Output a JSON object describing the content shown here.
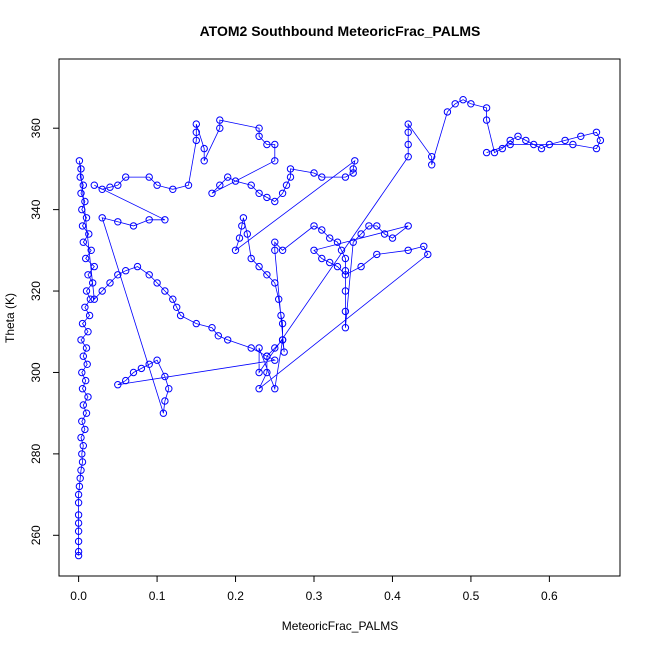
{
  "chart_data": {
    "type": "scatter",
    "title": "ATOM2 Southbound MeteoricFrac_PALMS",
    "xlabel": "MeteoricFrac_PALMS",
    "ylabel": "Theta (K)",
    "xlim": [
      -0.025,
      0.69
    ],
    "ylim": [
      250,
      377
    ],
    "x_ticks": [
      0.0,
      0.1,
      0.2,
      0.3,
      0.4,
      0.5,
      0.6
    ],
    "x_tick_labels": [
      "0.0",
      "0.1",
      "0.2",
      "0.3",
      "0.4",
      "0.5",
      "0.6"
    ],
    "y_ticks": [
      260,
      280,
      300,
      320,
      340,
      360
    ],
    "y_tick_labels": [
      "260",
      "280",
      "300",
      "320",
      "340",
      "360"
    ],
    "grid": false,
    "legend": "none",
    "marker": "open-circle",
    "connect_points": true,
    "color": "#0000ff",
    "points": [
      [
        0.0,
        255.0
      ],
      [
        0.0,
        256.0
      ],
      [
        0.0,
        258.5
      ],
      [
        0.0,
        261.0
      ],
      [
        0.0,
        263.0
      ],
      [
        0.0,
        265.0
      ],
      [
        0.0,
        268.0
      ],
      [
        0.0,
        270.0
      ],
      [
        0.001,
        272.0
      ],
      [
        0.002,
        274.0
      ],
      [
        0.003,
        276.0
      ],
      [
        0.005,
        278.0
      ],
      [
        0.004,
        280.0
      ],
      [
        0.006,
        282.0
      ],
      [
        0.003,
        284.0
      ],
      [
        0.008,
        286.0
      ],
      [
        0.004,
        288.0
      ],
      [
        0.01,
        290.0
      ],
      [
        0.006,
        292.0
      ],
      [
        0.012,
        294.0
      ],
      [
        0.005,
        296.0
      ],
      [
        0.009,
        298.0
      ],
      [
        0.004,
        300.0
      ],
      [
        0.011,
        302.0
      ],
      [
        0.006,
        304.0
      ],
      [
        0.01,
        306.0
      ],
      [
        0.003,
        308.0
      ],
      [
        0.012,
        310.0
      ],
      [
        0.005,
        312.0
      ],
      [
        0.014,
        314.0
      ],
      [
        0.008,
        316.0
      ],
      [
        0.015,
        318.0
      ],
      [
        0.01,
        320.0
      ],
      [
        0.018,
        322.0
      ],
      [
        0.012,
        324.0
      ],
      [
        0.02,
        326.0
      ],
      [
        0.009,
        328.0
      ],
      [
        0.016,
        330.0
      ],
      [
        0.006,
        332.0
      ],
      [
        0.013,
        334.0
      ],
      [
        0.005,
        336.0
      ],
      [
        0.01,
        338.0
      ],
      [
        0.004,
        340.0
      ],
      [
        0.008,
        342.0
      ],
      [
        0.003,
        344.0
      ],
      [
        0.006,
        346.0
      ],
      [
        0.002,
        348.0
      ],
      [
        0.003,
        350.0
      ],
      [
        0.001,
        352.0
      ],
      [
        0.02,
        318.0
      ],
      [
        0.03,
        320.0
      ],
      [
        0.04,
        322.0
      ],
      [
        0.05,
        324.0
      ],
      [
        0.06,
        325.0
      ],
      [
        0.075,
        326.0
      ],
      [
        0.09,
        324.0
      ],
      [
        0.1,
        322.0
      ],
      [
        0.11,
        320.0
      ],
      [
        0.12,
        318.0
      ],
      [
        0.125,
        316.0
      ],
      [
        0.13,
        314.0
      ],
      [
        0.15,
        312.0
      ],
      [
        0.17,
        311.0
      ],
      [
        0.178,
        309.0
      ],
      [
        0.19,
        308.0
      ],
      [
        0.22,
        306.0
      ],
      [
        0.24,
        304.0
      ],
      [
        0.25,
        303.0
      ],
      [
        0.05,
        297.0
      ],
      [
        0.06,
        298.0
      ],
      [
        0.07,
        300.0
      ],
      [
        0.08,
        301.0
      ],
      [
        0.09,
        302.0
      ],
      [
        0.1,
        303.0
      ],
      [
        0.11,
        299.0
      ],
      [
        0.115,
        296.0
      ],
      [
        0.11,
        293.0
      ],
      [
        0.108,
        290.0
      ],
      [
        0.03,
        338.0
      ],
      [
        0.05,
        337.0
      ],
      [
        0.07,
        336.0
      ],
      [
        0.09,
        337.5
      ],
      [
        0.11,
        337.5
      ],
      [
        0.02,
        346.0
      ],
      [
        0.03,
        345.0
      ],
      [
        0.04,
        345.5
      ],
      [
        0.05,
        346.0
      ],
      [
        0.06,
        348.0
      ],
      [
        0.09,
        348.0
      ],
      [
        0.1,
        346.0
      ],
      [
        0.12,
        345.0
      ],
      [
        0.14,
        346.0
      ],
      [
        0.15,
        357.0
      ],
      [
        0.15,
        359.0
      ],
      [
        0.15,
        361.0
      ],
      [
        0.16,
        355.0
      ],
      [
        0.16,
        352.0
      ],
      [
        0.18,
        360.0
      ],
      [
        0.18,
        362.0
      ],
      [
        0.23,
        360.0
      ],
      [
        0.23,
        358.0
      ],
      [
        0.24,
        356.0
      ],
      [
        0.25,
        356.0
      ],
      [
        0.25,
        352.0
      ],
      [
        0.17,
        344.0
      ],
      [
        0.18,
        346.0
      ],
      [
        0.19,
        348.0
      ],
      [
        0.2,
        347.0
      ],
      [
        0.22,
        346.0
      ],
      [
        0.23,
        344.0
      ],
      [
        0.24,
        343.0
      ],
      [
        0.25,
        342.0
      ],
      [
        0.26,
        344.0
      ],
      [
        0.265,
        346.0
      ],
      [
        0.27,
        348.0
      ],
      [
        0.27,
        350.0
      ],
      [
        0.3,
        349.0
      ],
      [
        0.31,
        348.0
      ],
      [
        0.34,
        348.0
      ],
      [
        0.35,
        349.0
      ],
      [
        0.35,
        350.0
      ],
      [
        0.352,
        352.0
      ],
      [
        0.2,
        330.0
      ],
      [
        0.205,
        333.0
      ],
      [
        0.208,
        336.0
      ],
      [
        0.21,
        338.0
      ],
      [
        0.215,
        334.0
      ],
      [
        0.22,
        328.0
      ],
      [
        0.23,
        326.0
      ],
      [
        0.24,
        324.0
      ],
      [
        0.25,
        322.0
      ],
      [
        0.255,
        318.0
      ],
      [
        0.258,
        314.0
      ],
      [
        0.26,
        312.0
      ],
      [
        0.26,
        308.0
      ],
      [
        0.262,
        305.0
      ],
      [
        0.25,
        330.0
      ],
      [
        0.25,
        332.0
      ],
      [
        0.26,
        330.0
      ],
      [
        0.3,
        336.0
      ],
      [
        0.31,
        335.0
      ],
      [
        0.32,
        333.0
      ],
      [
        0.33,
        332.0
      ],
      [
        0.335,
        330.0
      ],
      [
        0.34,
        328.0
      ],
      [
        0.34,
        325.0
      ],
      [
        0.34,
        320.0
      ],
      [
        0.34,
        315.0
      ],
      [
        0.34,
        311.0
      ],
      [
        0.35,
        332.0
      ],
      [
        0.36,
        334.0
      ],
      [
        0.37,
        336.0
      ],
      [
        0.38,
        336.0
      ],
      [
        0.39,
        334.0
      ],
      [
        0.4,
        333.0
      ],
      [
        0.42,
        336.0
      ],
      [
        0.3,
        330.0
      ],
      [
        0.31,
        328.0
      ],
      [
        0.32,
        327.0
      ],
      [
        0.33,
        326.0
      ],
      [
        0.34,
        324.0
      ],
      [
        0.36,
        326.0
      ],
      [
        0.38,
        329.0
      ],
      [
        0.42,
        330.0
      ],
      [
        0.44,
        331.0
      ],
      [
        0.445,
        329.0
      ],
      [
        0.23,
        296.0
      ],
      [
        0.24,
        300.0
      ],
      [
        0.24,
        304.0
      ],
      [
        0.25,
        306.0
      ],
      [
        0.26,
        308.0
      ],
      [
        0.25,
        296.0
      ],
      [
        0.23,
        306.0
      ],
      [
        0.23,
        300.0
      ],
      [
        0.42,
        353.0
      ],
      [
        0.42,
        356.0
      ],
      [
        0.42,
        359.0
      ],
      [
        0.42,
        361.0
      ],
      [
        0.45,
        353.0
      ],
      [
        0.45,
        351.0
      ],
      [
        0.47,
        364.0
      ],
      [
        0.48,
        366.0
      ],
      [
        0.49,
        367.0
      ],
      [
        0.5,
        366.0
      ],
      [
        0.52,
        365.0
      ],
      [
        0.52,
        362.0
      ],
      [
        0.53,
        354.0
      ],
      [
        0.54,
        355.0
      ],
      [
        0.55,
        357.0
      ],
      [
        0.56,
        358.0
      ],
      [
        0.57,
        357.0
      ],
      [
        0.58,
        356.0
      ],
      [
        0.59,
        355.0
      ],
      [
        0.6,
        356.0
      ],
      [
        0.62,
        357.0
      ],
      [
        0.64,
        358.0
      ],
      [
        0.66,
        359.0
      ],
      [
        0.665,
        357.0
      ],
      [
        0.66,
        355.0
      ],
      [
        0.63,
        356.0
      ],
      [
        0.55,
        356.0
      ],
      [
        0.52,
        354.0
      ]
    ]
  }
}
